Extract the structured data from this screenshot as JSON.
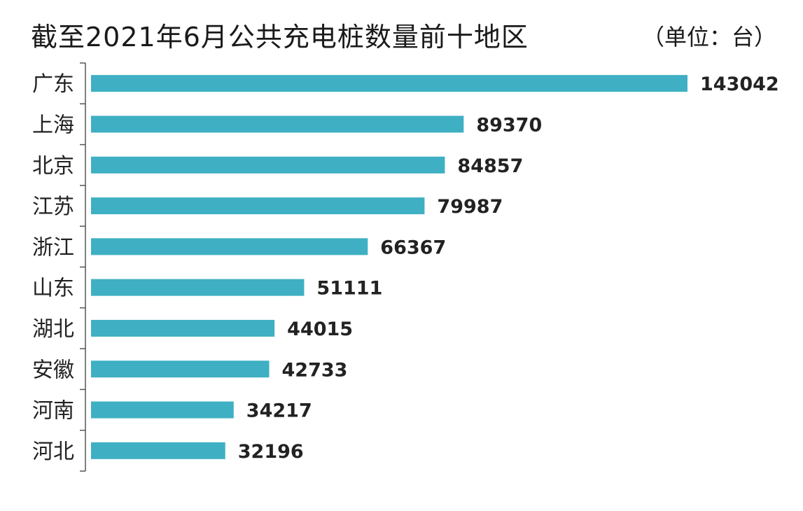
{
  "chart_data": {
    "type": "bar",
    "orientation": "horizontal",
    "title": "截至2021年6月公共充电桩数量前十地区",
    "unit_label": "（单位：台）",
    "categories": [
      "广东",
      "上海",
      "北京",
      "江苏",
      "浙江",
      "山东",
      "湖北",
      "安徽",
      "河南",
      "河北"
    ],
    "values": [
      143042,
      89370,
      84857,
      79987,
      66367,
      51111,
      44015,
      42733,
      34217,
      32196
    ],
    "value_labels": [
      "143042",
      "89370",
      "84857",
      "79987",
      "66367",
      "51111",
      "44015",
      "42733",
      "34217",
      "32196"
    ],
    "xlim": [
      0,
      143042
    ],
    "bar_color": "#3fb0c3",
    "grid": false,
    "legend": "none"
  }
}
